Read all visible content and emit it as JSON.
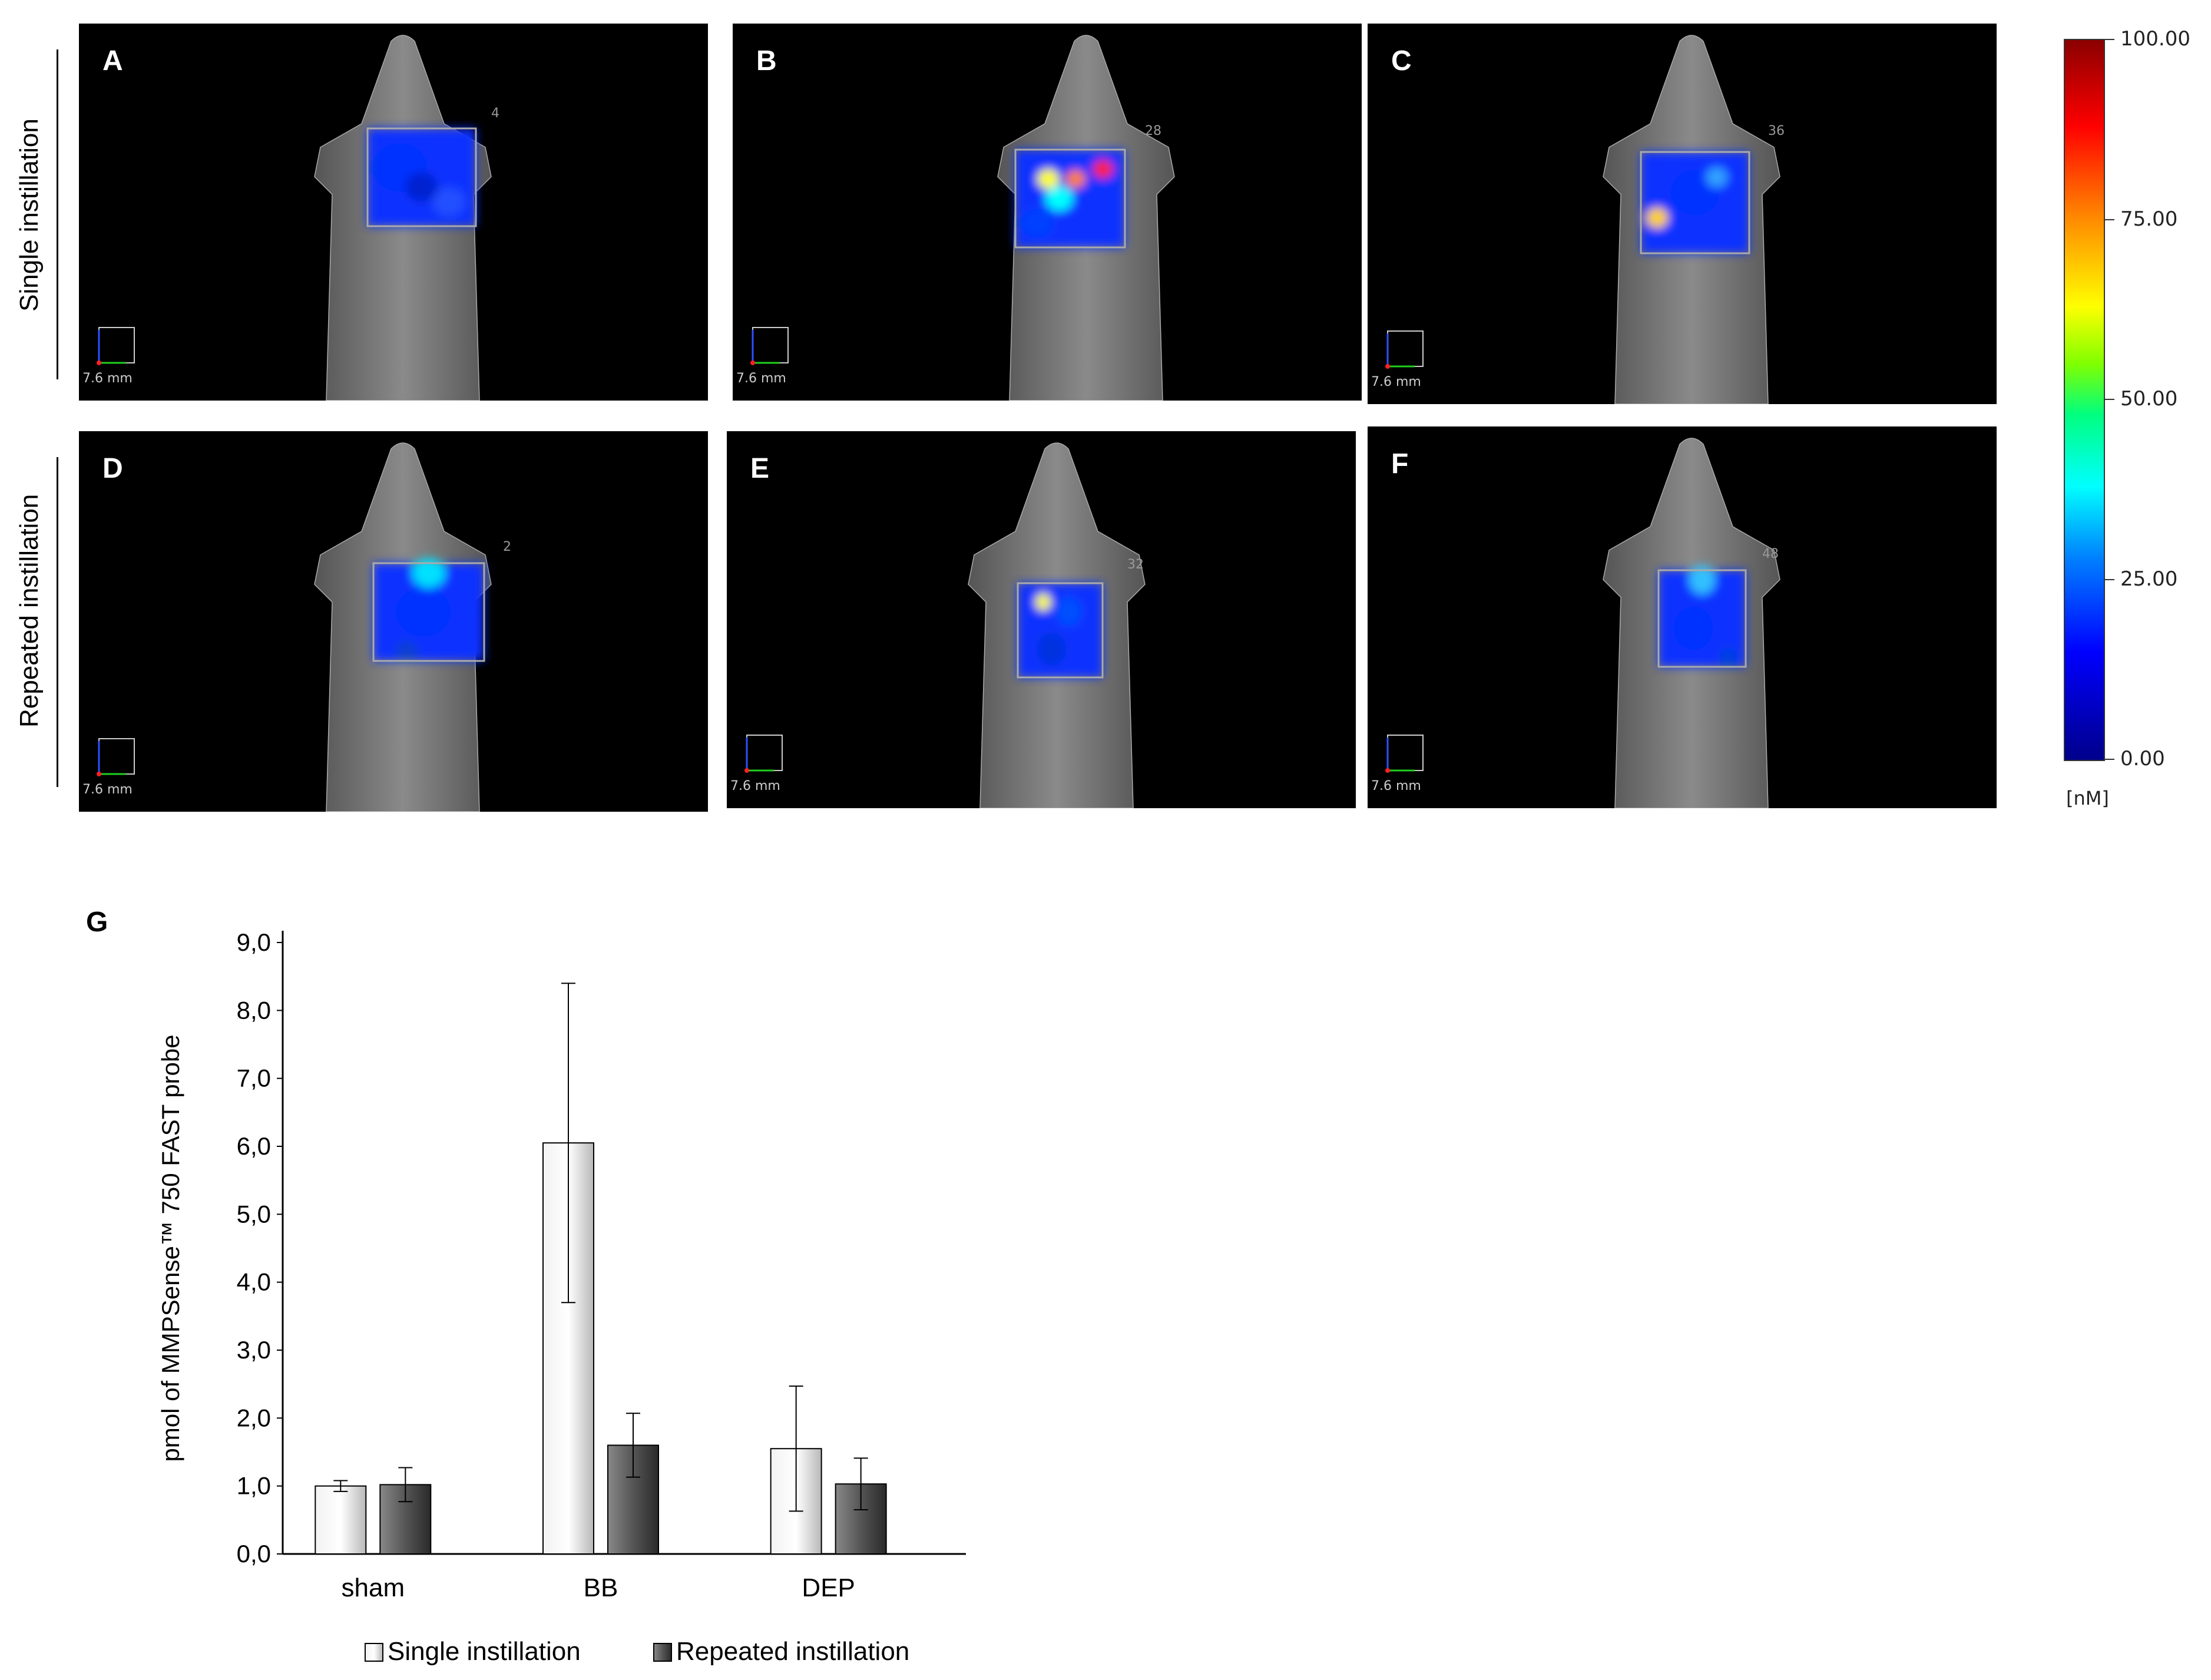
{
  "row_labels": [
    "Single instillation",
    "Repeated instillation"
  ],
  "panels": [
    {
      "label": "A",
      "scale": "7.6 mm",
      "id_number": "4"
    },
    {
      "label": "B",
      "scale": "7.6 mm",
      "id_number": "28"
    },
    {
      "label": "C",
      "scale": "7.6 mm",
      "id_number": "36"
    },
    {
      "label": "D",
      "scale": "7.6 mm",
      "id_number": "2"
    },
    {
      "label": "E",
      "scale": "7.6 mm",
      "id_number": "32"
    },
    {
      "label": "F",
      "scale": "7.6 mm",
      "id_number": "48"
    }
  ],
  "colorbar": {
    "ticks": [
      "100.00",
      "75.00",
      "50.00",
      "25.00",
      "0.00"
    ],
    "unit": "[nM]",
    "colors": [
      "#8b0000",
      "#ff0000",
      "#ff8c00",
      "#ffff00",
      "#00ff7f",
      "#00ffff",
      "#0000ff",
      "#00008b"
    ]
  },
  "panel_g_label": "G",
  "chart_data": {
    "type": "bar",
    "categories": [
      "sham",
      "BB",
      "DEP"
    ],
    "series": [
      {
        "name": "Single instillation",
        "values": [
          1.0,
          6.05,
          1.55
        ],
        "errors": [
          0.08,
          2.35,
          0.92
        ],
        "color": "#d4d4d4"
      },
      {
        "name": "Repeated instillation",
        "values": [
          1.02,
          1.6,
          1.03
        ],
        "errors": [
          0.25,
          0.47,
          0.38
        ],
        "color": "#4a4a4a"
      }
    ],
    "ylabel": "pmol of MMPSense™ 750 FAST probe",
    "ylim": [
      0,
      9
    ],
    "yticks": [
      "0,0",
      "1,0",
      "2,0",
      "3,0",
      "4,0",
      "5,0",
      "6,0",
      "7,0",
      "8,0",
      "9,0"
    ],
    "legend_position": "bottom"
  }
}
